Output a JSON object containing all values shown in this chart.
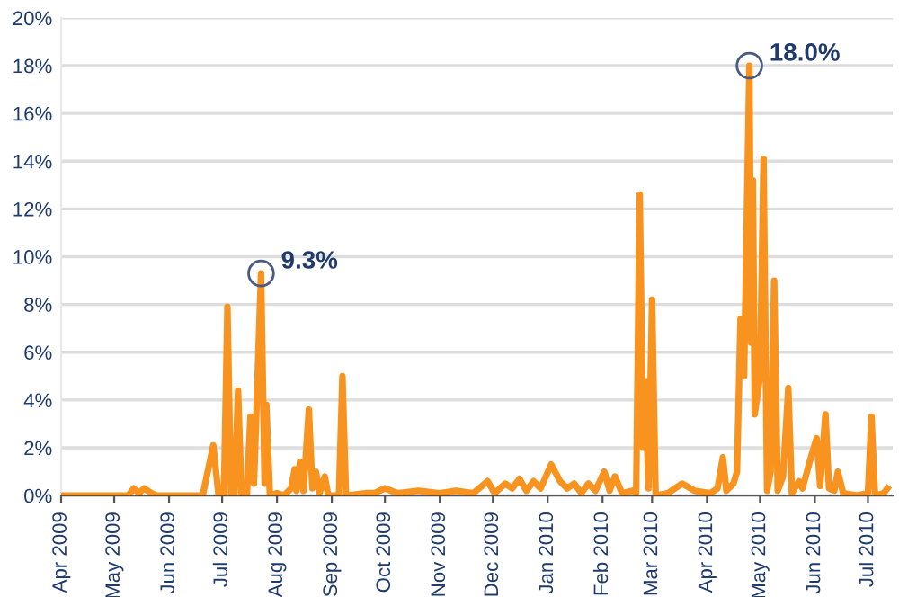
{
  "chart_data": {
    "type": "line",
    "x": [
      "2009-04-01",
      "2009-05-09",
      "2009-05-12",
      "2009-05-15",
      "2009-05-18",
      "2009-05-22",
      "2009-05-25",
      "2009-06-20",
      "2009-06-26",
      "2009-06-29",
      "2009-07-02",
      "2009-07-04",
      "2009-07-06",
      "2009-07-08",
      "2009-07-10",
      "2009-07-12",
      "2009-07-15",
      "2009-07-17",
      "2009-07-19",
      "2009-07-23",
      "2009-07-25",
      "2009-07-26",
      "2009-07-28",
      "2009-08-01",
      "2009-08-05",
      "2009-08-09",
      "2009-08-11",
      "2009-08-12",
      "2009-08-14",
      "2009-08-16",
      "2009-08-19",
      "2009-08-21",
      "2009-08-23",
      "2009-08-25",
      "2009-08-28",
      "2009-08-30",
      "2009-09-05",
      "2009-09-07",
      "2009-09-09",
      "2009-09-20",
      "2009-09-25",
      "2009-10-01",
      "2009-10-08",
      "2009-10-20",
      "2009-11-01",
      "2009-11-10",
      "2009-11-20",
      "2009-11-28",
      "2009-12-02",
      "2009-12-08",
      "2009-12-12",
      "2009-12-16",
      "2009-12-20",
      "2009-12-24",
      "2009-12-28",
      "2010-01-03",
      "2010-01-08",
      "2010-01-12",
      "2010-01-16",
      "2010-01-20",
      "2010-01-24",
      "2010-01-28",
      "2010-02-02",
      "2010-02-05",
      "2010-02-08",
      "2010-02-12",
      "2010-02-18",
      "2010-02-20",
      "2010-02-22",
      "2010-02-24",
      "2010-02-25",
      "2010-02-27",
      "2010-03-01",
      "2010-03-03",
      "2010-03-10",
      "2010-03-18",
      "2010-03-25",
      "2010-04-03",
      "2010-04-07",
      "2010-04-10",
      "2010-04-12",
      "2010-04-16",
      "2010-04-18",
      "2010-04-20",
      "2010-04-22",
      "2010-04-25",
      "2010-04-26",
      "2010-04-27",
      "2010-04-28",
      "2010-05-01",
      "2010-05-03",
      "2010-05-05",
      "2010-05-07",
      "2010-05-09",
      "2010-05-11",
      "2010-05-14",
      "2010-05-17",
      "2010-05-19",
      "2010-05-23",
      "2010-05-25",
      "2010-05-29",
      "2010-06-02",
      "2010-06-04",
      "2010-06-07",
      "2010-06-09",
      "2010-06-12",
      "2010-06-14",
      "2010-06-17",
      "2010-06-25",
      "2010-07-01",
      "2010-07-03",
      "2010-07-05",
      "2010-07-10",
      "2010-07-12"
    ],
    "series": [
      {
        "color": "#f7931e",
        "values": [
          0,
          0,
          0.3,
          0.1,
          0.3,
          0.1,
          0,
          0,
          2.1,
          0,
          0,
          7.9,
          0,
          0,
          4.4,
          0,
          0,
          3.3,
          0.5,
          9.3,
          0.5,
          3.8,
          0,
          0.1,
          0,
          0.3,
          1.1,
          0.2,
          1.4,
          0.2,
          3.6,
          0.3,
          1.0,
          0.1,
          0.8,
          0,
          0,
          5.0,
          0,
          0.1,
          0.1,
          0.3,
          0.1,
          0.2,
          0.1,
          0.2,
          0.1,
          0.6,
          0.1,
          0.5,
          0.3,
          0.7,
          0.2,
          0.6,
          0.3,
          1.3,
          0.6,
          0.3,
          0.5,
          0.1,
          0.5,
          0.2,
          1.0,
          0.2,
          0.8,
          0.1,
          0.2,
          0.1,
          12.6,
          2.0,
          4.8,
          0.3,
          8.2,
          0,
          0.1,
          0.5,
          0.2,
          0.1,
          0.3,
          1.6,
          0.2,
          0.5,
          1.0,
          7.4,
          5.0,
          18.0,
          6.4,
          13.2,
          3.4,
          5.0,
          14.1,
          0.2,
          1.0,
          9.0,
          0.2,
          0.8,
          4.5,
          0.1,
          0.6,
          0.3,
          1.4,
          2.4,
          0.4,
          3.4,
          0.3,
          0.2,
          1.0,
          0.1,
          0,
          0.1,
          3.3,
          0,
          0.1,
          0.3
        ]
      }
    ],
    "xlim": [
      "2009-04-01",
      "2010-07-15"
    ],
    "xticks": [
      {
        "value": "2009-04-01",
        "label": "Apr 2009"
      },
      {
        "value": "2009-05-01",
        "label": "May 2009"
      },
      {
        "value": "2009-06-01",
        "label": "Jun 2009"
      },
      {
        "value": "2009-07-01",
        "label": "Jul 2009"
      },
      {
        "value": "2009-08-01",
        "label": "Aug 2009"
      },
      {
        "value": "2009-09-01",
        "label": "Sep 2009"
      },
      {
        "value": "2009-10-01",
        "label": "Oct 2009"
      },
      {
        "value": "2009-11-01",
        "label": "Nov 2009"
      },
      {
        "value": "2009-12-01",
        "label": "Dec 2009"
      },
      {
        "value": "2010-01-01",
        "label": "Jan 2010"
      },
      {
        "value": "2010-02-01",
        "label": "Feb 2010"
      },
      {
        "value": "2010-03-01",
        "label": "Mar 2010"
      },
      {
        "value": "2010-04-01",
        "label": "Apr 2010"
      },
      {
        "value": "2010-05-01",
        "label": "May 2010"
      },
      {
        "value": "2010-06-01",
        "label": "Jun 2010"
      },
      {
        "value": "2010-07-01",
        "label": "Jul 2010"
      }
    ],
    "ylim": [
      0,
      20
    ],
    "yticks": [
      {
        "value": 0,
        "label": "0%"
      },
      {
        "value": 2,
        "label": "2%"
      },
      {
        "value": 4,
        "label": "4%"
      },
      {
        "value": 6,
        "label": "6%"
      },
      {
        "value": 8,
        "label": "8%"
      },
      {
        "value": 10,
        "label": "10%"
      },
      {
        "value": 12,
        "label": "12%"
      },
      {
        "value": 14,
        "label": "14%"
      },
      {
        "value": 16,
        "label": "16%"
      },
      {
        "value": 18,
        "label": "18%"
      },
      {
        "value": 20,
        "label": "20%"
      }
    ],
    "grid": "y",
    "legend": false,
    "annotations": [
      {
        "text": "9.3%",
        "x": "2009-07-23",
        "y": 9.3
      },
      {
        "text": "18.0%",
        "x": "2010-04-25",
        "y": 18.0
      }
    ]
  }
}
